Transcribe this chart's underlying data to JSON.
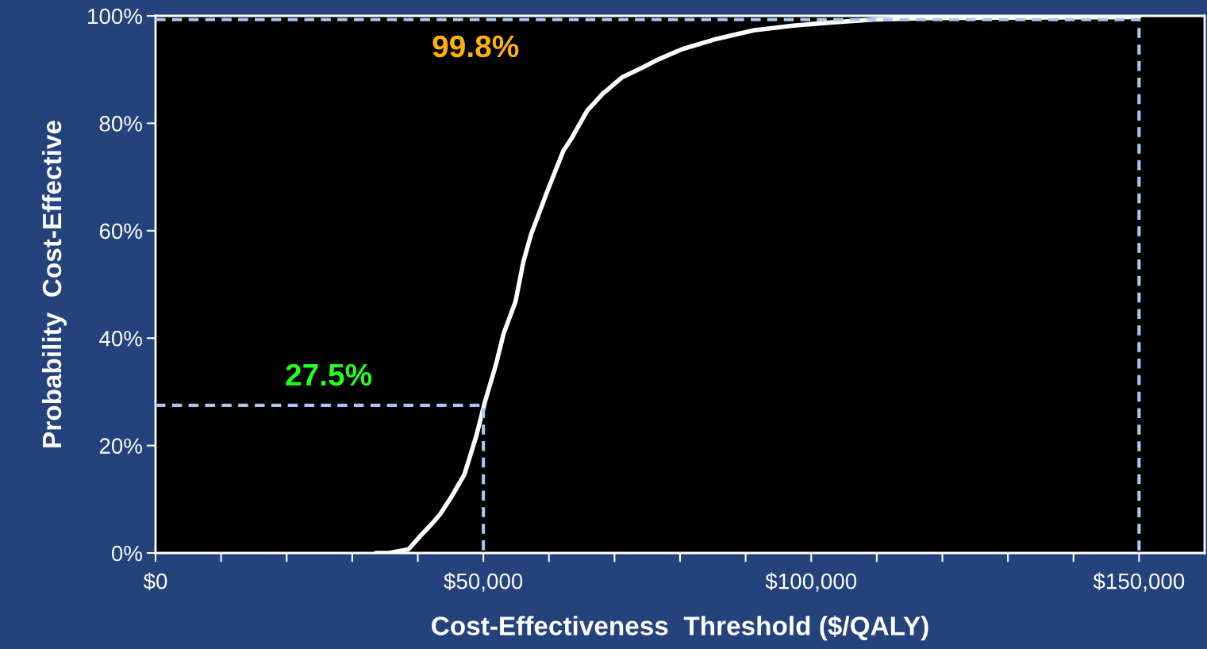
{
  "chart_data": {
    "type": "line",
    "xlabel": "Cost-Effectiveness  Threshold ($/QALY)",
    "ylabel": "Probability  Cost-Effective",
    "series": [
      {
        "color": "#ffffff",
        "x": [
          33600,
          35600,
          38600,
          40400,
          42200,
          43400,
          45200,
          47100,
          48900,
          50300,
          51900,
          53100,
          54900,
          56100,
          57300,
          59800,
          62200,
          63400,
          65800,
          68200,
          71200,
          74300,
          76700,
          80300,
          85200,
          91200,
          97300,
          103300,
          109400,
          117800,
          150000
        ],
        "values": [
          0,
          0,
          0.7,
          3.2,
          5.5,
          7.2,
          10.6,
          14.6,
          21.7,
          28.4,
          35.0,
          40.9,
          46.8,
          54.2,
          59.4,
          67.5,
          74.9,
          77.1,
          82.3,
          85.5,
          88.6,
          90.4,
          91.9,
          93.8,
          95.6,
          97.3,
          98.2,
          98.8,
          99.3,
          99.6,
          99.8
        ]
      },
      {
        "color": "#a9c4f5",
        "line_style": "dashed",
        "x": [
          0,
          50000,
          50000
        ],
        "values": [
          27.5,
          27.5,
          0
        ]
      },
      {
        "color": "#a9c4f5",
        "line_style": "dashed",
        "x": [
          0,
          150000,
          150000
        ],
        "values": [
          99.3,
          99.3,
          0
        ]
      }
    ],
    "xlim": [
      0,
      160000
    ],
    "xticks": [
      {
        "value": 0,
        "label": "$0"
      },
      {
        "value": 10000,
        "label": null
      },
      {
        "value": 20000,
        "label": null
      },
      {
        "value": 30000,
        "label": null
      },
      {
        "value": 40000,
        "label": null
      },
      {
        "value": 50000,
        "label": "$50,000"
      },
      {
        "value": 60000,
        "label": null
      },
      {
        "value": 70000,
        "label": null
      },
      {
        "value": 80000,
        "label": null
      },
      {
        "value": 90000,
        "label": null
      },
      {
        "value": 100000,
        "label": "$100,000"
      },
      {
        "value": 110000,
        "label": null
      },
      {
        "value": 120000,
        "label": null
      },
      {
        "value": 130000,
        "label": null
      },
      {
        "value": 140000,
        "label": null
      },
      {
        "value": 150000,
        "label": "$150,000"
      }
    ],
    "ylim": [
      0,
      100
    ],
    "yticks": [
      {
        "value": 0,
        "label": "0%"
      },
      {
        "value": 20,
        "label": "20%"
      },
      {
        "value": 40,
        "label": "40%"
      },
      {
        "value": 60,
        "label": "60%"
      },
      {
        "value": 80,
        "label": "80%"
      },
      {
        "value": 100,
        "label": "100%"
      }
    ],
    "annotations": [
      "27.5%",
      "99.8%"
    ],
    "grid": false,
    "legend": false,
    "marker": "none",
    "line_style": "solid"
  }
}
